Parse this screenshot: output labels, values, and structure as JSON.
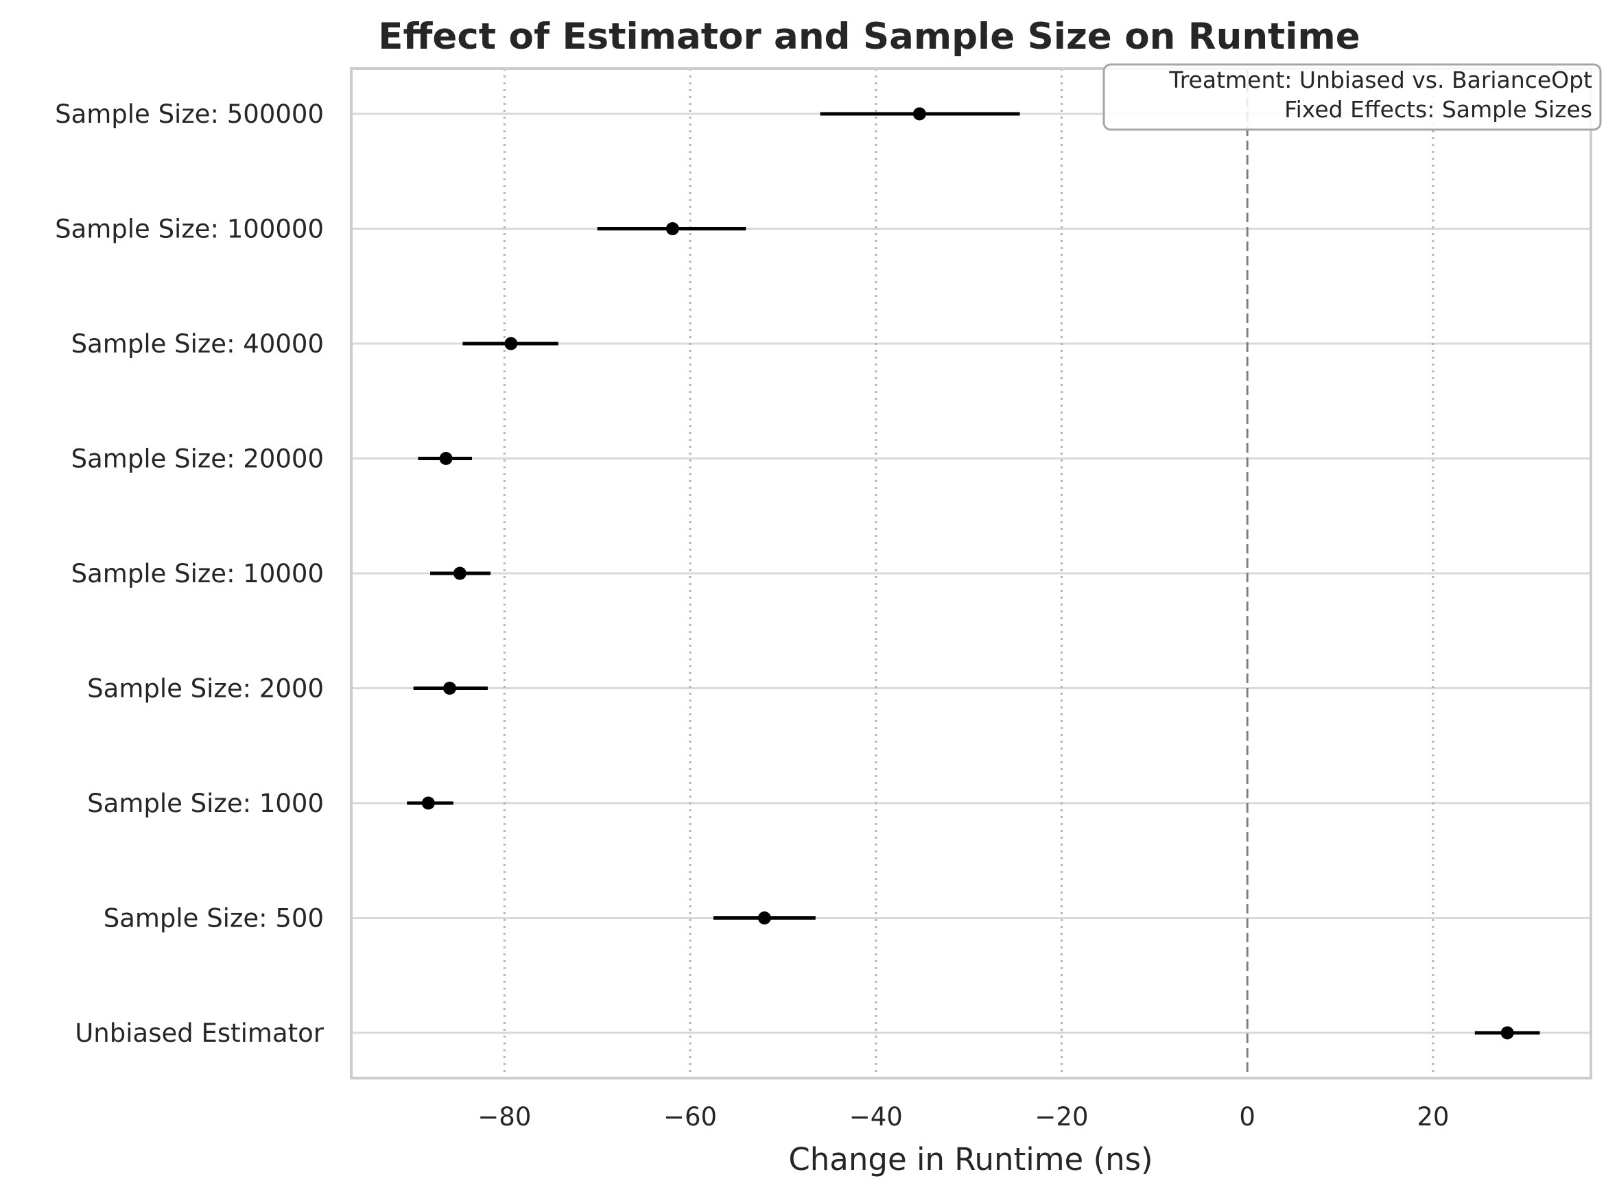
{
  "chart_data": {
    "type": "scatter",
    "subtype": "coefficient-plot-with-horizontal-error-bars",
    "title": "Effect of Estimator and Sample Size on Runtime",
    "xlabel": "Change in Runtime (ns)",
    "ylabel": "",
    "xlim": [
      -96.5,
      37
    ],
    "xticks": [
      -80,
      -60,
      -40,
      -20,
      0,
      20
    ],
    "xtick_labels": [
      "−80",
      "−60",
      "−40",
      "−20",
      "0",
      "20"
    ],
    "reference_line": {
      "x": 0,
      "style": "dashed",
      "color": "#808080"
    },
    "vertical_grid": "dotted",
    "horizontal_grid": "solid",
    "legend_box": {
      "position": "top-right",
      "lines": [
        "Treatment: Unbiased vs. BarianceOpt",
        "Fixed Effects: Sample Sizes"
      ]
    },
    "categories": [
      "Sample Size: 500000",
      "Sample Size: 100000",
      "Sample Size: 40000",
      "Sample Size: 20000",
      "Sample Size: 10000",
      "Sample Size: 2000",
      "Sample Size: 1000",
      "Sample Size: 500",
      "Unbiased Estimator"
    ],
    "series": [
      {
        "estimates": [
          -35.3,
          -61.9,
          -79.3,
          -86.3,
          -84.8,
          -85.9,
          -88.2,
          -52.0,
          28.0
        ],
        "ci_low": [
          -46.0,
          -70.0,
          -84.5,
          -89.3,
          -88.0,
          -89.8,
          -90.5,
          -57.5,
          24.5
        ],
        "ci_high": [
          -24.5,
          -54.0,
          -74.2,
          -83.5,
          -81.5,
          -81.8,
          -85.5,
          -46.5,
          31.5
        ]
      }
    ],
    "colors": {
      "point": "#000000",
      "grid": "#d9d9d9",
      "axis_frame": "#cccccc",
      "zero_line": "#808080"
    }
  }
}
